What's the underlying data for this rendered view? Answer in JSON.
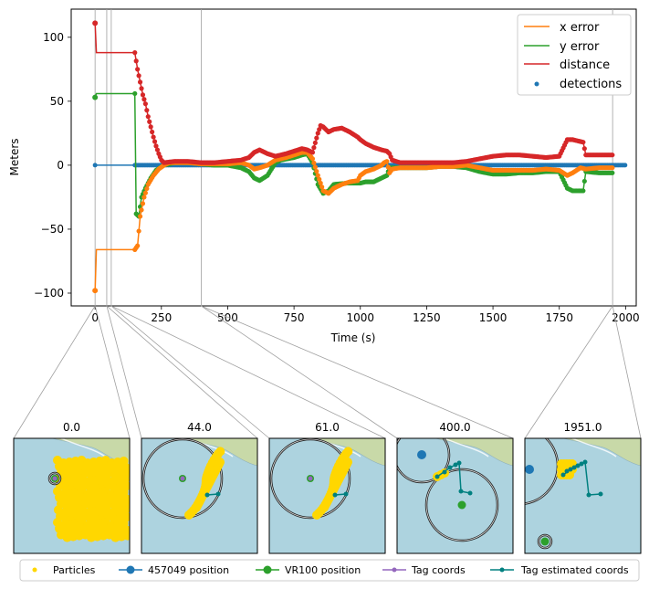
{
  "chart_data": [
    {
      "type": "line",
      "xlabel": "Time (s)",
      "ylabel": "Meters",
      "xlim": [
        -90,
        2040
      ],
      "ylim": [
        -110,
        122
      ],
      "xticks": [
        0,
        250,
        500,
        750,
        1000,
        1250,
        1500,
        1750,
        2000
      ],
      "yticks": [
        -100,
        -50,
        0,
        50,
        100
      ],
      "xtick_labels": [
        "0",
        "250",
        "500",
        "750",
        "1000",
        "1250",
        "1500",
        "1750",
        "2000"
      ],
      "ytick_labels": [
        "−100",
        "−50",
        "0",
        "50",
        "100"
      ],
      "legend_position": "top-right",
      "grid": false,
      "marker_lines_x": [
        0,
        44,
        61,
        400,
        1951
      ],
      "series": [
        {
          "name": "x error",
          "color": "#ff7f0e",
          "points": [
            [
              0,
              -98
            ],
            [
              5,
              -66
            ],
            [
              50,
              -66
            ],
            [
              100,
              -66
            ],
            [
              150,
              -66
            ],
            [
              160,
              -63
            ],
            [
              170,
              -40
            ],
            [
              185,
              -25
            ],
            [
              200,
              -15
            ],
            [
              220,
              -8
            ],
            [
              240,
              -3
            ],
            [
              260,
              0
            ],
            [
              280,
              2
            ],
            [
              300,
              2
            ],
            [
              350,
              2
            ],
            [
              400,
              1
            ],
            [
              450,
              1
            ],
            [
              500,
              1
            ],
            [
              550,
              2
            ],
            [
              580,
              0
            ],
            [
              600,
              -3
            ],
            [
              620,
              -2
            ],
            [
              650,
              0
            ],
            [
              680,
              4
            ],
            [
              700,
              5
            ],
            [
              720,
              6
            ],
            [
              750,
              8
            ],
            [
              780,
              10
            ],
            [
              800,
              10
            ],
            [
              820,
              5
            ],
            [
              840,
              -8
            ],
            [
              860,
              -20
            ],
            [
              880,
              -22
            ],
            [
              900,
              -18
            ],
            [
              930,
              -15
            ],
            [
              960,
              -13
            ],
            [
              990,
              -12
            ],
            [
              1000,
              -8
            ],
            [
              1020,
              -5
            ],
            [
              1050,
              -3
            ],
            [
              1080,
              0
            ],
            [
              1090,
              2
            ],
            [
              1100,
              3
            ],
            [
              1110,
              -6
            ],
            [
              1120,
              -3
            ],
            [
              1150,
              -2
            ],
            [
              1200,
              -2
            ],
            [
              1250,
              -2
            ],
            [
              1300,
              -1
            ],
            [
              1350,
              -1
            ],
            [
              1400,
              0
            ],
            [
              1450,
              -2
            ],
            [
              1500,
              -4
            ],
            [
              1550,
              -4
            ],
            [
              1600,
              -4
            ],
            [
              1650,
              -4
            ],
            [
              1700,
              -3
            ],
            [
              1750,
              -4
            ],
            [
              1780,
              -8
            ],
            [
              1800,
              -6
            ],
            [
              1830,
              -2
            ],
            [
              1850,
              -3
            ],
            [
              1900,
              -2
            ],
            [
              1950,
              -2
            ]
          ]
        },
        {
          "name": "y error",
          "color": "#2ca02c",
          "points": [
            [
              0,
              53
            ],
            [
              5,
              56
            ],
            [
              50,
              56
            ],
            [
              100,
              56
            ],
            [
              150,
              56
            ],
            [
              155,
              -38
            ],
            [
              165,
              -40
            ],
            [
              175,
              -25
            ],
            [
              190,
              -18
            ],
            [
              210,
              -10
            ],
            [
              230,
              -4
            ],
            [
              260,
              0
            ],
            [
              300,
              2
            ],
            [
              350,
              2
            ],
            [
              400,
              1
            ],
            [
              450,
              0
            ],
            [
              500,
              0
            ],
            [
              550,
              -2
            ],
            [
              580,
              -5
            ],
            [
              600,
              -10
            ],
            [
              620,
              -12
            ],
            [
              650,
              -8
            ],
            [
              680,
              2
            ],
            [
              700,
              4
            ],
            [
              750,
              6
            ],
            [
              780,
              8
            ],
            [
              800,
              9
            ],
            [
              820,
              2
            ],
            [
              840,
              -15
            ],
            [
              860,
              -22
            ],
            [
              880,
              -20
            ],
            [
              900,
              -15
            ],
            [
              950,
              -14
            ],
            [
              1000,
              -14
            ],
            [
              1020,
              -13
            ],
            [
              1050,
              -13
            ],
            [
              1080,
              -10
            ],
            [
              1100,
              -8
            ],
            [
              1110,
              -2
            ],
            [
              1150,
              -2
            ],
            [
              1200,
              -2
            ],
            [
              1250,
              -2
            ],
            [
              1300,
              -1
            ],
            [
              1350,
              -1
            ],
            [
              1400,
              -2
            ],
            [
              1450,
              -5
            ],
            [
              1500,
              -7
            ],
            [
              1550,
              -7
            ],
            [
              1600,
              -6
            ],
            [
              1650,
              -6
            ],
            [
              1700,
              -5
            ],
            [
              1750,
              -5
            ],
            [
              1780,
              -18
            ],
            [
              1800,
              -20
            ],
            [
              1840,
              -20
            ],
            [
              1850,
              -5
            ],
            [
              1900,
              -6
            ],
            [
              1950,
              -6
            ]
          ]
        },
        {
          "name": "distance",
          "color": "#d62728",
          "points": [
            [
              0,
              111
            ],
            [
              5,
              88
            ],
            [
              50,
              88
            ],
            [
              100,
              88
            ],
            [
              150,
              88
            ],
            [
              160,
              75
            ],
            [
              170,
              65
            ],
            [
              180,
              55
            ],
            [
              190,
              48
            ],
            [
              200,
              38
            ],
            [
              210,
              30
            ],
            [
              220,
              22
            ],
            [
              230,
              15
            ],
            [
              240,
              9
            ],
            [
              250,
              4
            ],
            [
              260,
              2
            ],
            [
              300,
              3
            ],
            [
              350,
              3
            ],
            [
              400,
              2
            ],
            [
              450,
              2
            ],
            [
              500,
              3
            ],
            [
              550,
              4
            ],
            [
              580,
              6
            ],
            [
              600,
              10
            ],
            [
              620,
              12
            ],
            [
              650,
              9
            ],
            [
              680,
              7
            ],
            [
              700,
              8
            ],
            [
              720,
              9
            ],
            [
              750,
              11
            ],
            [
              780,
              13
            ],
            [
              800,
              12
            ],
            [
              820,
              10
            ],
            [
              840,
              25
            ],
            [
              850,
              31
            ],
            [
              860,
              30
            ],
            [
              880,
              26
            ],
            [
              900,
              28
            ],
            [
              930,
              29
            ],
            [
              960,
              26
            ],
            [
              990,
              22
            ],
            [
              1000,
              20
            ],
            [
              1020,
              17
            ],
            [
              1050,
              14
            ],
            [
              1080,
              12
            ],
            [
              1100,
              11
            ],
            [
              1110,
              9
            ],
            [
              1120,
              4
            ],
            [
              1150,
              2
            ],
            [
              1200,
              2
            ],
            [
              1250,
              2
            ],
            [
              1300,
              2
            ],
            [
              1350,
              2
            ],
            [
              1400,
              3
            ],
            [
              1450,
              5
            ],
            [
              1500,
              7
            ],
            [
              1550,
              8
            ],
            [
              1600,
              8
            ],
            [
              1650,
              7
            ],
            [
              1700,
              6
            ],
            [
              1750,
              7
            ],
            [
              1780,
              20
            ],
            [
              1800,
              20
            ],
            [
              1840,
              18
            ],
            [
              1850,
              8
            ],
            [
              1900,
              8
            ],
            [
              1950,
              8
            ]
          ]
        },
        {
          "name": "detections",
          "color": "#1f77b4",
          "kind": "scatter",
          "points": [
            [
              0,
              0
            ],
            [
              150,
              0
            ],
            [
              2000,
              0
            ]
          ]
        }
      ]
    },
    {
      "type": "scatter",
      "title": "0.0",
      "marker_x": 0
    },
    {
      "type": "scatter",
      "title": "44.0",
      "marker_x": 44
    },
    {
      "type": "scatter",
      "title": "61.0",
      "marker_x": 61
    },
    {
      "type": "scatter",
      "title": "400.0",
      "marker_x": 400
    },
    {
      "type": "scatter",
      "title": "1951.0",
      "marker_x": 1951
    }
  ],
  "bottom_legend": [
    {
      "label": "Particles",
      "color": "#ffd700",
      "kind": "dot"
    },
    {
      "label": "457049 position",
      "color": "#1f77b4",
      "kind": "line-marker"
    },
    {
      "label": "VR100 position",
      "color": "#2ca02c",
      "kind": "line-marker"
    },
    {
      "label": "Tag coords",
      "color": "#9467bd",
      "kind": "line-marker-small"
    },
    {
      "label": "Tag estimated coords",
      "color": "#008080",
      "kind": "line-marker-small"
    }
  ],
  "colors": {
    "water": "#add3df",
    "land": "#c8d9a8",
    "particles": "#ffd700",
    "tag_estimated": "#008080"
  }
}
